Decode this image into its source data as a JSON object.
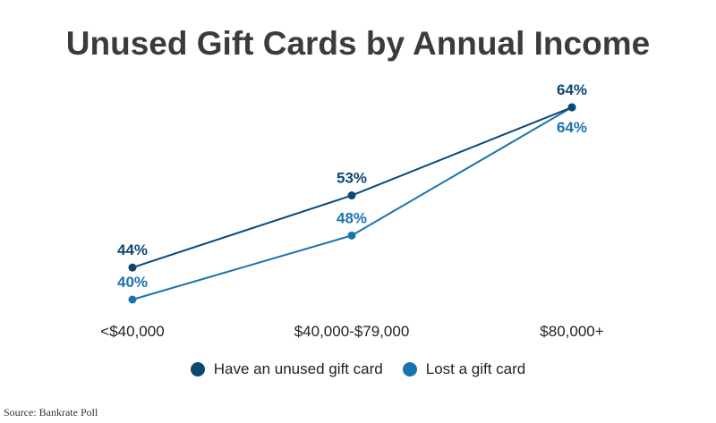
{
  "chart_data": {
    "type": "line",
    "title": "Unused Gift Cards by Annual Income",
    "categories": [
      "<$40,000",
      "$40,000-$79,000",
      "$80,000+"
    ],
    "series": [
      {
        "name": "Have an unused gift card",
        "values": [
          44,
          53,
          64
        ],
        "labels": [
          "44%",
          "53%",
          "64%"
        ],
        "color": "#0d4774"
      },
      {
        "name": "Lost a gift card",
        "values": [
          40,
          48,
          64
        ],
        "labels": [
          "40%",
          "48%",
          "64%"
        ],
        "color": "#1a73ae"
      }
    ],
    "ylim": [
      40,
      64
    ],
    "grid": false,
    "legend_position": "bottom",
    "source": "Source: Bankrate Poll"
  }
}
